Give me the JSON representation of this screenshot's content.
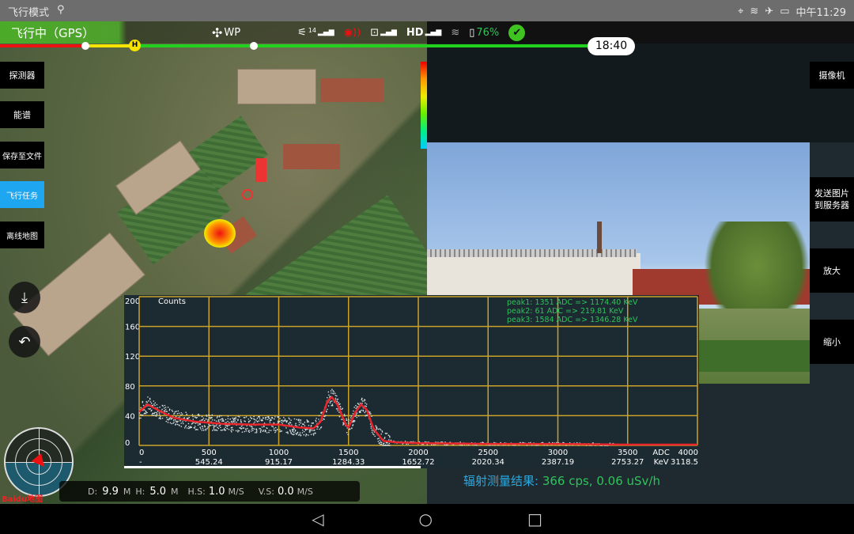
{
  "status_bar": {
    "left_text": "飞行模式",
    "time": "中午11:29",
    "icons": [
      "usb-icon",
      "location-icon",
      "wifi-icon",
      "airplane-icon",
      "battery-icon"
    ]
  },
  "top_bar": {
    "flight_mode": "飞行中（GPS）",
    "mode_label": "WP",
    "satellite_count": "14",
    "hd_label": "HD",
    "battery": "76%",
    "timer": "18:40",
    "home_marker": "H"
  },
  "left_menu": [
    {
      "label": "探测器"
    },
    {
      "label": "能谱"
    },
    {
      "label": "保存至文件"
    },
    {
      "label": "飞行任务",
      "active": true
    },
    {
      "label": "离线地图"
    }
  ],
  "right_menu": [
    {
      "label": "摄像机"
    },
    {
      "label": "发送图片到服务器"
    },
    {
      "label": "放大"
    },
    {
      "label": "缩小"
    }
  ],
  "telemetry": {
    "d_label": "D:",
    "d_value": "9.9",
    "d_unit": "M",
    "h_label": "H:",
    "h_value": "5.0",
    "h_unit": "M",
    "hs_label": "H.S:",
    "hs_value": "1.0",
    "hs_unit": "M/S",
    "vs_label": "V.S:",
    "vs_value": "0.0",
    "vs_unit": "M/S"
  },
  "map_logo": "Baidu地图",
  "result": {
    "label": "辐射测量结果: ",
    "value": "366 cps, 0.06 uSv/h"
  },
  "colors": {
    "accent": "#29abe2",
    "active_menu": "#1ea7f0",
    "grid": "#c9a227",
    "fit_line": "#e8262b",
    "peaks_text": "#2ec35a"
  },
  "chart_data": {
    "type": "scatter",
    "ylabel": "Counts",
    "xlim": [
      0,
      4000
    ],
    "ylim": [
      0,
      200
    ],
    "grid": true,
    "y_ticks": [
      "0",
      "40",
      "80",
      "120",
      "160",
      "200"
    ],
    "x_ticks": [
      "0",
      "500",
      "1000",
      "1500",
      "2000",
      "2500",
      "3000",
      "3500",
      "4000"
    ],
    "x_unit_adc": "ADC",
    "x_ticks_kev": [
      "-",
      "545.24",
      "915.17",
      "1284.33",
      "1652.72",
      "2020.34",
      "2387.19",
      "2753.27",
      "3118.5"
    ],
    "x_unit_kev": "KeV",
    "peaks": [
      "peak1: 1351 ADC => 1174.40 KeV",
      "peak2: 61 ADC => 219.81 KeV",
      "peak3: 1584 ADC => 1346.28 KeV"
    ],
    "fit_curve": {
      "x": [
        0,
        60,
        150,
        250,
        400,
        600,
        800,
        1000,
        1150,
        1250,
        1300,
        1350,
        1380,
        1420,
        1480,
        1500,
        1550,
        1590,
        1630,
        1680,
        1750,
        1850,
        2000,
        2500,
        3000,
        3500,
        4000
      ],
      "y": [
        45,
        55,
        46,
        37,
        32,
        29,
        28,
        28,
        24,
        23,
        32,
        60,
        65,
        55,
        28,
        24,
        45,
        55,
        48,
        22,
        6,
        4,
        3,
        2,
        2,
        1,
        1
      ]
    }
  }
}
